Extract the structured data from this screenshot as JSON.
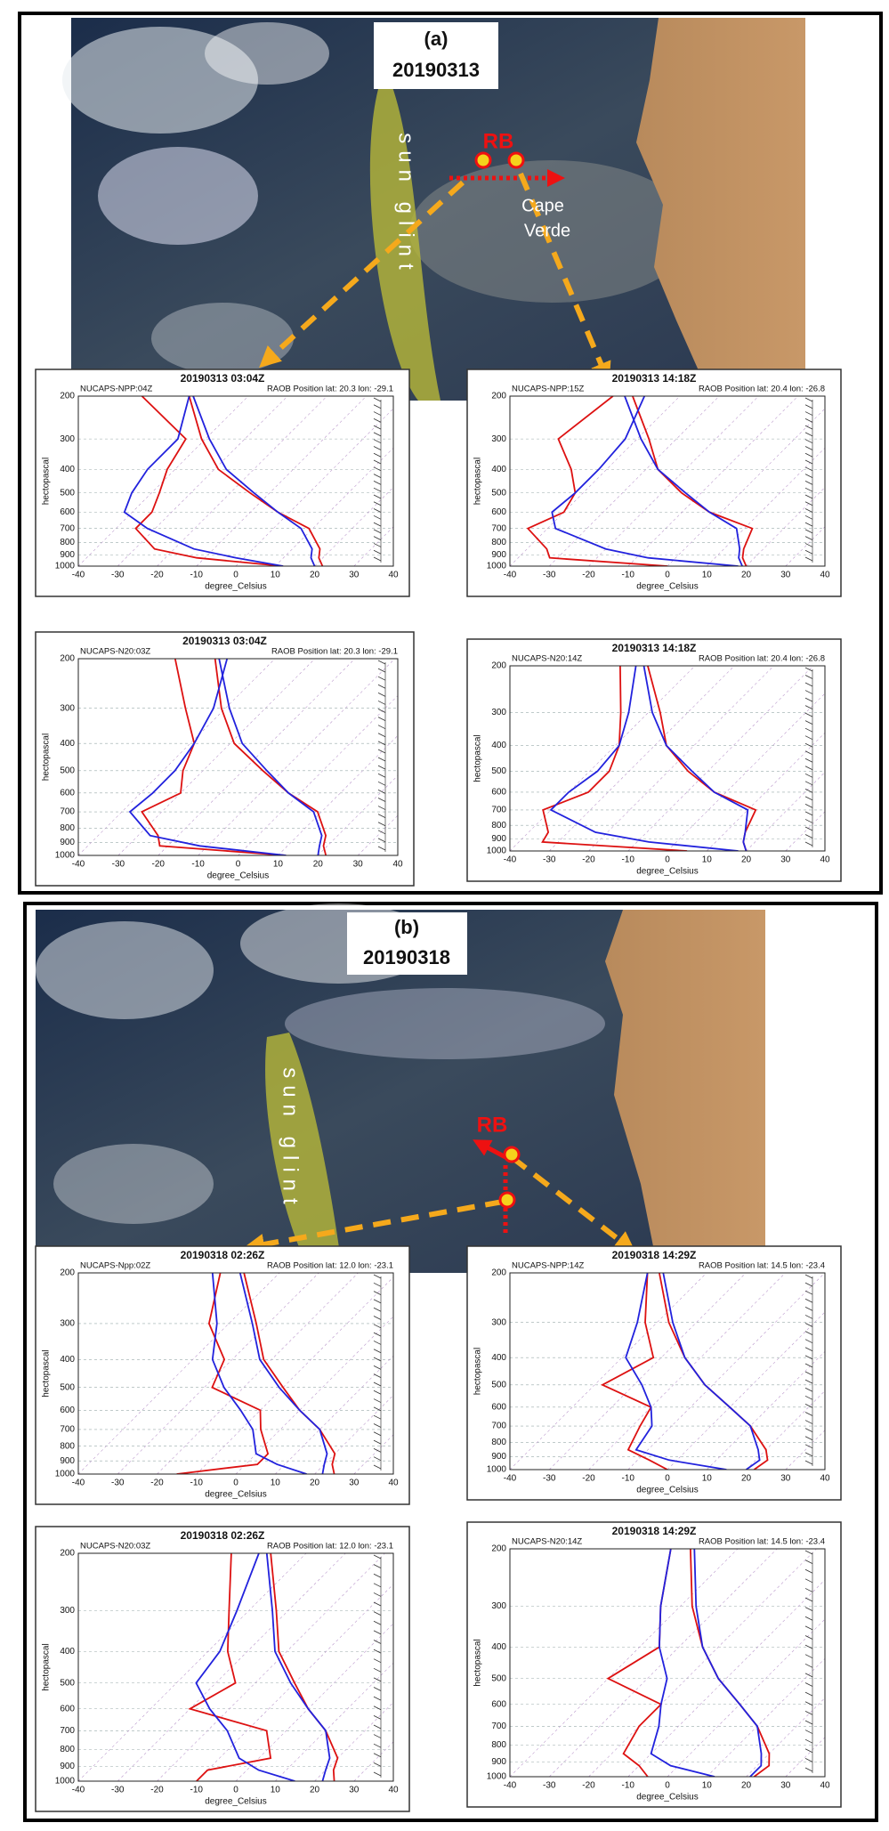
{
  "panels": [
    {
      "label": "(a)",
      "date": "20190313",
      "glint": "sun glint",
      "site": "RB",
      "place": [
        "Cape",
        "Verde"
      ]
    },
    {
      "label": "(b)",
      "date": "20190318",
      "glint": "sun glint",
      "site": "RB"
    }
  ],
  "chart_data": [
    {
      "type": "skewt",
      "title": "20190313 03:04Z",
      "model_label": "NUCAPS-NPP:04Z",
      "raob_label": "RAOB Position lat: 20.3 lon: -29.1",
      "xlabel": "degree_Celsius",
      "ylabel": "hectopascal",
      "xlim": [
        -40,
        40
      ],
      "xticks": [
        -40,
        -30,
        -20,
        -10,
        0,
        10,
        20,
        30,
        40
      ],
      "ylim": [
        1000,
        200
      ],
      "yticks": [
        1000,
        900,
        800,
        700,
        600,
        500,
        400,
        300,
        200
      ],
      "yscale": "log",
      "grid": true,
      "y": [
        1000,
        925,
        850,
        700,
        600,
        500,
        400,
        300,
        200
      ],
      "series": [
        {
          "color": "#dd1111",
          "values": [
            22,
            19,
            17,
            9,
            -3,
            -15,
            -29,
            -41,
            -55
          ]
        },
        {
          "color": "#dd1111",
          "values": [
            12,
            -12,
            -25,
            -35,
            -35,
            -38,
            -42,
            -45,
            -67
          ]
        },
        {
          "color": "#2222dd",
          "values": [
            20,
            17,
            15,
            7,
            -3,
            -14,
            -27,
            -39,
            -54
          ]
        },
        {
          "color": "#2222dd",
          "values": [
            12,
            -2,
            -15,
            -32,
            -42,
            -45,
            -47,
            -47,
            -55
          ]
        }
      ]
    },
    {
      "type": "skewt",
      "title": "20190313 14:18Z",
      "model_label": "NUCAPS-NPP:15Z",
      "raob_label": "RAOB Position lat: 20.4 lon: -26.8",
      "xlabel": "degree_Celsius",
      "ylabel": "hectopascal",
      "xlim": [
        -40,
        40
      ],
      "xticks": [
        -40,
        -30,
        -20,
        -10,
        0,
        10,
        20,
        30,
        40
      ],
      "ylim": [
        1000,
        200
      ],
      "yticks": [
        1000,
        900,
        800,
        700,
        600,
        500,
        400,
        300,
        200
      ],
      "yscale": "log",
      "grid": true,
      "y": [
        1000,
        925,
        850,
        700,
        600,
        500,
        400,
        300,
        200
      ],
      "series": [
        {
          "color": "#dd1111",
          "values": [
            20,
            17,
            15,
            12,
            -3,
            -15,
            -27,
            -37,
            -52
          ]
        },
        {
          "color": "#dd1111",
          "values": [
            0,
            -32,
            -35,
            -45,
            -40,
            -42,
            -49,
            -60,
            -57
          ]
        },
        {
          "color": "#2222dd",
          "values": [
            19,
            16,
            14,
            8,
            -3,
            -14,
            -27,
            -39,
            -54
          ]
        },
        {
          "color": "#2222dd",
          "values": [
            18,
            -7,
            -20,
            -38,
            -43,
            -42,
            -42,
            -43,
            -49
          ]
        }
      ]
    },
    {
      "type": "skewt",
      "title": "20190313 03:04Z",
      "model_label": "NUCAPS-N20:03Z",
      "raob_label": "RAOB Position lat: 20.3 lon: -29.1",
      "xlabel": "degree_Celsius",
      "ylabel": "hectopascal",
      "xlim": [
        -40,
        40
      ],
      "xticks": [
        -40,
        -30,
        -20,
        -10,
        0,
        10,
        20,
        30,
        40
      ],
      "ylim": [
        1000,
        200
      ],
      "yticks": [
        1000,
        900,
        800,
        700,
        600,
        500,
        400,
        300,
        200
      ],
      "yscale": "log",
      "grid": true,
      "y": [
        1000,
        925,
        850,
        700,
        600,
        500,
        400,
        300,
        200
      ],
      "series": [
        {
          "color": "#dd1111",
          "values": [
            22,
            19,
            17,
            9,
            -3,
            -15,
            -29,
            -41,
            -55
          ]
        },
        {
          "color": "#dd1111",
          "values": [
            12,
            -22,
            -25,
            -35,
            -30,
            -35,
            -39,
            -50,
            -65
          ]
        },
        {
          "color": "#2222dd",
          "values": [
            20,
            18,
            16,
            8,
            -3,
            -14,
            -27,
            -39,
            -54
          ]
        },
        {
          "color": "#2222dd",
          "values": [
            12,
            -12,
            -27,
            -38,
            -37,
            -37,
            -39,
            -43,
            -52
          ]
        }
      ]
    },
    {
      "type": "skewt",
      "title": "20190313 14:18Z",
      "model_label": "NUCAPS-N20:14Z",
      "raob_label": "RAOB Position lat: 20.4 lon: -26.8",
      "xlabel": "degree_Celsius",
      "ylabel": "hectopascal",
      "xlim": [
        -40,
        40
      ],
      "xticks": [
        -40,
        -30,
        -20,
        -10,
        0,
        10,
        20,
        30,
        40
      ],
      "ylim": [
        1000,
        200
      ],
      "yticks": [
        1000,
        900,
        800,
        700,
        600,
        500,
        400,
        300,
        200
      ],
      "yscale": "log",
      "grid": true,
      "y": [
        1000,
        925,
        850,
        700,
        600,
        500,
        400,
        300,
        200
      ],
      "series": [
        {
          "color": "#dd1111",
          "values": [
            20,
            17,
            15,
            12,
            -3,
            -15,
            -27,
            -37,
            -52
          ]
        },
        {
          "color": "#dd1111",
          "values": [
            5,
            -34,
            -35,
            -42,
            -35,
            -35,
            -39,
            -47,
            -59
          ]
        },
        {
          "color": "#2222dd",
          "values": [
            20,
            17,
            15,
            10,
            -3,
            -14,
            -27,
            -39,
            -53
          ]
        },
        {
          "color": "#2222dd",
          "values": [
            18,
            -7,
            -23,
            -40,
            -40,
            -38,
            -39,
            -45,
            -55
          ]
        }
      ]
    },
    {
      "type": "skewt",
      "title": "20190318 02:26Z",
      "model_label": "NUCAPS-Npp:02Z",
      "raob_label": "RAOB Position lat: 12.0 lon: -23.1",
      "xlabel": "degree_Celsius",
      "ylabel": "hectopascal",
      "xlim": [
        -40,
        40
      ],
      "xticks": [
        -40,
        -30,
        -20,
        -10,
        0,
        10,
        20,
        30,
        40
      ],
      "ylim": [
        1000,
        200
      ],
      "yticks": [
        1000,
        900,
        800,
        700,
        600,
        500,
        400,
        300,
        200
      ],
      "yscale": "log",
      "grid": true,
      "y": [
        1000,
        925,
        850,
        700,
        600,
        500,
        400,
        300,
        200
      ],
      "series": [
        {
          "color": "#dd1111",
          "values": [
            25,
            22,
            20,
            10,
            0,
            -10,
            -22,
            -33,
            -49
          ]
        },
        {
          "color": "#dd1111",
          "values": [
            -15,
            3,
            3,
            -5,
            -10,
            -28,
            -32,
            -45,
            -55
          ]
        },
        {
          "color": "#2222dd",
          "values": [
            22,
            20,
            18,
            10,
            0,
            -11,
            -23,
            -34,
            -50
          ]
        },
        {
          "color": "#2222dd",
          "values": [
            18,
            8,
            0,
            -7,
            -15,
            -25,
            -35,
            -43,
            -57
          ]
        }
      ]
    },
    {
      "type": "skewt",
      "title": "20190318 14:29Z",
      "model_label": "NUCAPS-NPP:14Z",
      "raob_label": "RAOB Position lat: 14.5 lon: -23.4",
      "xlabel": "degree_Celsius",
      "ylabel": "hectopascal",
      "xlim": [
        -40,
        40
      ],
      "xticks": [
        -40,
        -30,
        -20,
        -10,
        0,
        10,
        20,
        30,
        40
      ],
      "ylim": [
        1000,
        200
      ],
      "yticks": [
        1000,
        900,
        800,
        700,
        600,
        500,
        400,
        300,
        200
      ],
      "yscale": "log",
      "grid": true,
      "y": [
        1000,
        925,
        850,
        700,
        600,
        500,
        400,
        300,
        200
      ],
      "series": [
        {
          "color": "#dd1111",
          "values": [
            22,
            23,
            20,
            10,
            0,
            -12,
            -24,
            -37,
            -52
          ]
        },
        {
          "color": "#dd1111",
          "values": [
            0,
            -7,
            -15,
            -18,
            -20,
            -38,
            -32,
            -43,
            -55
          ]
        },
        {
          "color": "#2222dd",
          "values": [
            20,
            21,
            18,
            10,
            0,
            -12,
            -24,
            -36,
            -51
          ]
        },
        {
          "color": "#2222dd",
          "values": [
            15,
            -2,
            -13,
            -15,
            -20,
            -28,
            -39,
            -45,
            -55
          ]
        }
      ]
    },
    {
      "type": "skewt",
      "title": "20190318 02:26Z",
      "model_label": "NUCAPS-N20:03Z",
      "raob_label": "RAOB Position lat: 12.0 lon: -23.1",
      "xlabel": "degree_Celsius",
      "ylabel": "hectopascal",
      "xlim": [
        -40,
        40
      ],
      "xticks": [
        -40,
        -30,
        -20,
        -10,
        0,
        10,
        20,
        30,
        40
      ],
      "ylim": [
        1000,
        200
      ],
      "yticks": [
        1000,
        900,
        800,
        700,
        600,
        500,
        400,
        300,
        200
      ],
      "yscale": "log",
      "grid": true,
      "y": [
        1000,
        925,
        850,
        700,
        600,
        500,
        400,
        300,
        200
      ],
      "series": [
        {
          "color": "#dd1111",
          "values": [
            25,
            22,
            20,
            10,
            0,
            -10,
            -22,
            -33,
            -49
          ]
        },
        {
          "color": "#dd1111",
          "values": [
            -10,
            -10,
            3,
            -5,
            -30,
            -25,
            -35,
            -45,
            -59
          ]
        },
        {
          "color": "#2222dd",
          "values": [
            22,
            20,
            18,
            10,
            0,
            -11,
            -23,
            -34,
            -50
          ]
        },
        {
          "color": "#2222dd",
          "values": [
            15,
            3,
            -5,
            -15,
            -25,
            -35,
            -37,
            -43,
            -52
          ]
        }
      ]
    },
    {
      "type": "skewt",
      "title": "20190318 14:29Z",
      "model_label": "NUCAPS-N20:14Z",
      "raob_label": "RAOB Position lat: 14.5 lon: -23.4",
      "xlabel": "degree_Celsius",
      "ylabel": "hectopascal",
      "xlim": [
        -40,
        40
      ],
      "xticks": [
        -40,
        -30,
        -20,
        -10,
        0,
        10,
        20,
        30,
        40
      ],
      "ylim": [
        1000,
        200
      ],
      "yticks": [
        1000,
        900,
        800,
        700,
        600,
        500,
        400,
        300,
        200
      ],
      "yscale": "log",
      "grid": true,
      "y": [
        1000,
        925,
        850,
        700,
        600,
        500,
        400,
        300,
        200
      ],
      "series": [
        {
          "color": "#dd1111",
          "values": [
            22,
            23,
            20,
            10,
            0,
            -12,
            -24,
            -37,
            -52
          ]
        },
        {
          "color": "#dd1111",
          "values": [
            -5,
            -10,
            -17,
            -20,
            -20,
            -40,
            -35,
            -45,
            -57
          ]
        },
        {
          "color": "#2222dd",
          "values": [
            21,
            21,
            18,
            10,
            0,
            -12,
            -24,
            -36,
            -51
          ]
        },
        {
          "color": "#2222dd",
          "values": [
            12,
            -2,
            -10,
            -15,
            -20,
            -25,
            -35,
            -45,
            -57
          ]
        }
      ]
    }
  ]
}
